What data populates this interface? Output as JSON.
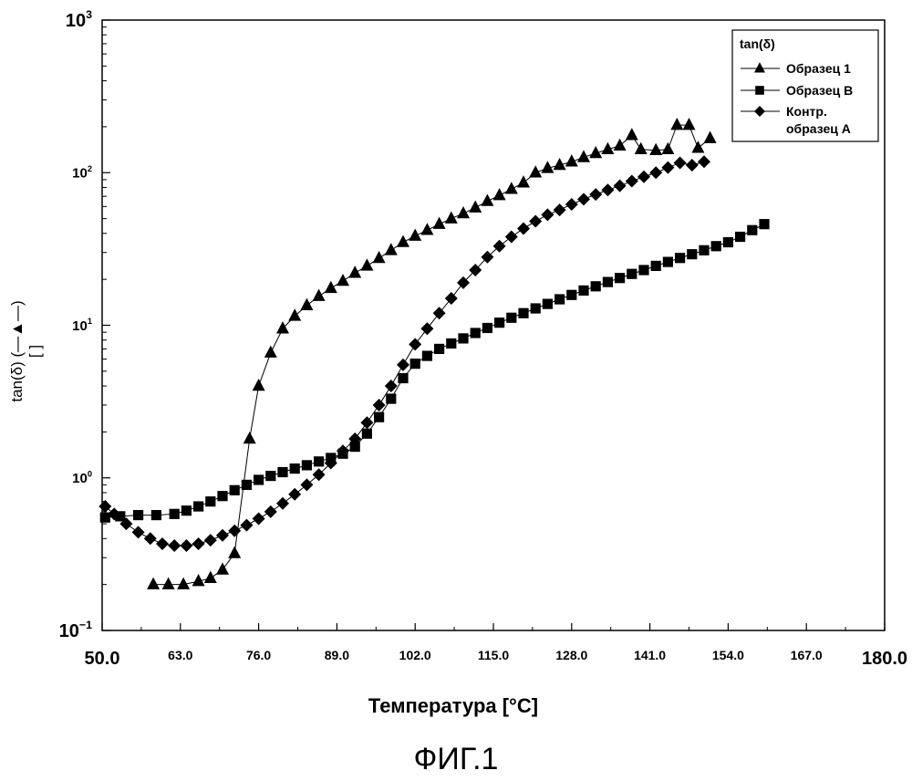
{
  "chart_data": {
    "type": "scatter",
    "title": "",
    "xlabel": "Температура [°C]",
    "ylabel_lines": [
      "tan(δ) (—▲—)",
      "[ ]"
    ],
    "xlim": [
      50,
      180
    ],
    "ylim": [
      0.1,
      1000
    ],
    "y_scale": "log",
    "grid": false,
    "legend_placement": "top-right",
    "legend_title": "tan(δ)",
    "x_ticks": [
      "50.0",
      "63.0",
      "76.0",
      "89.0",
      "102.0",
      "115.0",
      "128.0",
      "141.0",
      "154.0",
      "167.0",
      "180.0"
    ],
    "y_ticks": [
      {
        "value": 0.1,
        "base": "10",
        "exp": "−1"
      },
      {
        "value": 1,
        "base": "10",
        "exp": "0"
      },
      {
        "value": 10,
        "base": "10",
        "exp": "1"
      },
      {
        "value": 100,
        "base": "10",
        "exp": "2"
      },
      {
        "value": 1000,
        "base": "10",
        "exp": "3"
      }
    ],
    "series": [
      {
        "name": "Образец 1",
        "marker": "triangle",
        "x": [
          58.5,
          61,
          63.5,
          66,
          68,
          70,
          72,
          74.5,
          76,
          78,
          80,
          82,
          84,
          86,
          88,
          90,
          92,
          94,
          96,
          98,
          100,
          102,
          104,
          106,
          108,
          110,
          112,
          114,
          116,
          118,
          120,
          122,
          124,
          126,
          128,
          130,
          132,
          134,
          136,
          138,
          139.5,
          142,
          144,
          145.5,
          147.5,
          149,
          151
        ],
        "y": [
          0.2,
          0.2,
          0.2,
          0.21,
          0.22,
          0.25,
          0.32,
          1.8,
          4,
          6.6,
          9.5,
          11.5,
          13.5,
          15.5,
          17.5,
          19.5,
          22,
          24.5,
          27.5,
          31,
          35,
          38.5,
          42,
          46,
          50,
          54,
          59,
          65,
          71,
          78,
          86,
          100,
          107,
          112,
          118,
          126,
          134,
          142,
          150,
          176,
          142,
          140,
          142,
          205,
          205,
          145,
          168
        ]
      },
      {
        "name": "Образец В",
        "marker": "square",
        "x": [
          50.5,
          53,
          56,
          59,
          62,
          64,
          66,
          68,
          70,
          72,
          74,
          76,
          78,
          80,
          82,
          84,
          86,
          88,
          90,
          92,
          94,
          96,
          98,
          100,
          102,
          104,
          106,
          108,
          110,
          112,
          114,
          116,
          118,
          120,
          122,
          124,
          126,
          128,
          130,
          132,
          134,
          136,
          138,
          140,
          142,
          144,
          146,
          148,
          150,
          152,
          154,
          156,
          158,
          160
        ],
        "y": [
          0.55,
          0.56,
          0.57,
          0.57,
          0.58,
          0.61,
          0.65,
          0.7,
          0.76,
          0.83,
          0.9,
          0.97,
          1.03,
          1.09,
          1.15,
          1.21,
          1.28,
          1.35,
          1.44,
          1.6,
          1.95,
          2.5,
          3.3,
          4.5,
          5.6,
          6.3,
          7.0,
          7.6,
          8.2,
          8.9,
          9.6,
          10.4,
          11.2,
          12,
          12.9,
          13.8,
          14.8,
          15.8,
          16.9,
          18,
          19.2,
          20.4,
          21.7,
          23,
          24.5,
          26,
          27.6,
          29.2,
          31,
          33,
          35,
          38,
          42,
          46
        ]
      },
      {
        "name": "Контр. образец А",
        "marker": "diamond",
        "x": [
          50.5,
          52,
          54,
          56,
          58,
          60,
          62,
          64,
          66,
          68,
          70,
          72,
          74,
          76,
          78,
          80,
          82,
          84,
          86,
          88,
          90,
          92,
          94,
          96,
          98,
          100,
          102,
          104,
          106,
          108,
          110,
          112,
          114,
          116,
          118,
          120,
          122,
          124,
          126,
          128,
          130,
          132,
          134,
          136,
          138,
          140,
          142,
          144,
          146,
          148,
          150
        ],
        "y": [
          0.65,
          0.58,
          0.5,
          0.44,
          0.4,
          0.37,
          0.36,
          0.36,
          0.37,
          0.39,
          0.42,
          0.45,
          0.49,
          0.54,
          0.6,
          0.68,
          0.78,
          0.9,
          1.05,
          1.25,
          1.5,
          1.8,
          2.3,
          3.0,
          4.0,
          5.5,
          7.5,
          9.5,
          12,
          15,
          19,
          23,
          28,
          33,
          38,
          43,
          48,
          53,
          57,
          62,
          67,
          72,
          77,
          82,
          88,
          94,
          100,
          108,
          116,
          112,
          118
        ]
      }
    ]
  },
  "caption": "ФИГ.1"
}
